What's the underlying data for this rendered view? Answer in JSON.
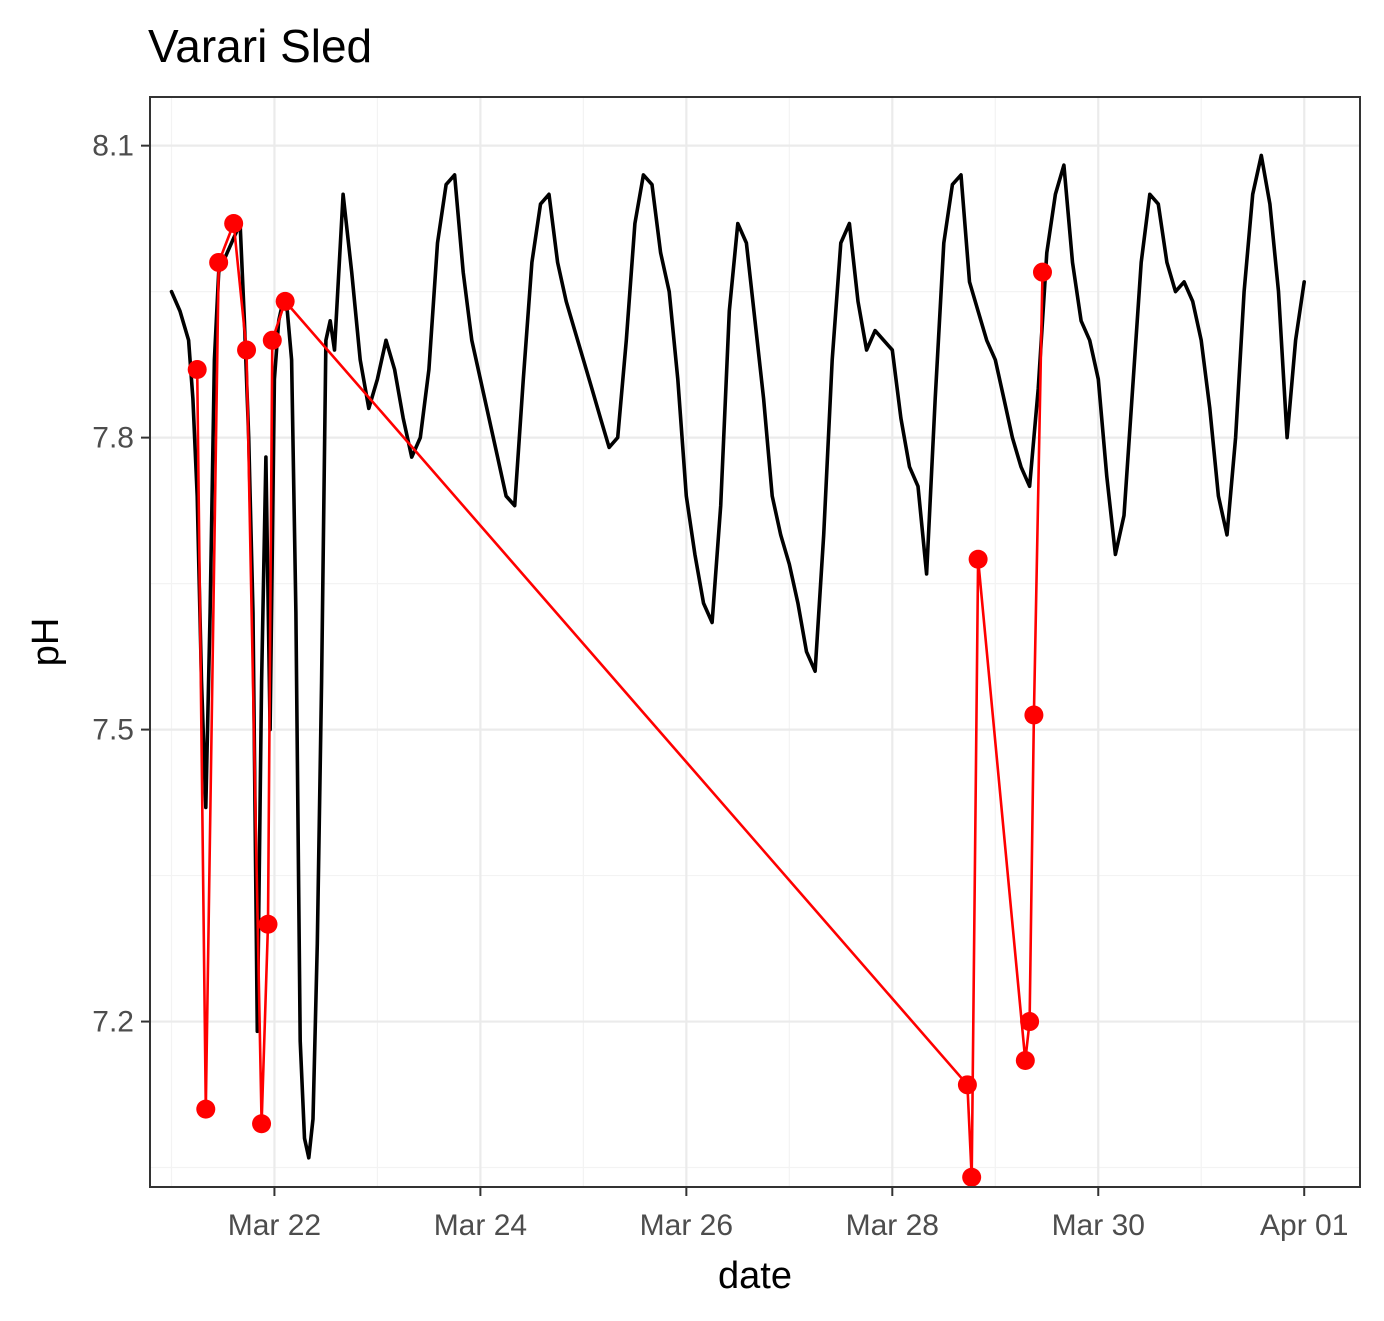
{
  "chart_data": {
    "type": "line",
    "title": "Varari Sled",
    "xlabel": "date",
    "ylabel": "pH",
    "x_type": "date",
    "xlim": [
      "2024-03-20T19:00",
      "2024-04-01T13:00"
    ],
    "ylim": [
      7.03,
      8.15
    ],
    "x_ticks": [
      {
        "date": "2024-03-22",
        "label": "Mar 22"
      },
      {
        "date": "2024-03-24",
        "label": "Mar 24"
      },
      {
        "date": "2024-03-26",
        "label": "Mar 26"
      },
      {
        "date": "2024-03-28",
        "label": "Mar 28"
      },
      {
        "date": "2024-03-30",
        "label": "Mar 30"
      },
      {
        "date": "2024-04-01",
        "label": "Apr 01"
      }
    ],
    "y_ticks": [
      {
        "value": 7.2,
        "label": "7.2"
      },
      {
        "value": 7.5,
        "label": "7.5"
      },
      {
        "value": 7.8,
        "label": "7.8"
      },
      {
        "value": 8.1,
        "label": "8.1"
      }
    ],
    "grid": true,
    "series": [
      {
        "color": "#000000",
        "style": "line",
        "points": [
          [
            "2024-03-21T00:00",
            7.95
          ],
          [
            "2024-03-21T02:00",
            7.93
          ],
          [
            "2024-03-21T04:00",
            7.9
          ],
          [
            "2024-03-21T05:00",
            7.84
          ],
          [
            "2024-03-21T06:00",
            7.74
          ],
          [
            "2024-03-21T07:00",
            7.55
          ],
          [
            "2024-03-21T08:00",
            7.42
          ],
          [
            "2024-03-21T09:00",
            7.62
          ],
          [
            "2024-03-21T10:00",
            7.88
          ],
          [
            "2024-03-21T11:00",
            7.97
          ],
          [
            "2024-03-21T13:00",
            7.99
          ],
          [
            "2024-03-21T15:00",
            8.01
          ],
          [
            "2024-03-21T16:00",
            8.02
          ],
          [
            "2024-03-21T17:00",
            7.92
          ],
          [
            "2024-03-21T18:00",
            7.8
          ],
          [
            "2024-03-21T19:00",
            7.62
          ],
          [
            "2024-03-21T20:00",
            7.19
          ],
          [
            "2024-03-21T21:00",
            7.55
          ],
          [
            "2024-03-21T22:00",
            7.78
          ],
          [
            "2024-03-21T23:00",
            7.5
          ],
          [
            "2024-03-22T00:00",
            7.86
          ],
          [
            "2024-03-22T01:00",
            7.92
          ],
          [
            "2024-03-22T02:00",
            7.94
          ],
          [
            "2024-03-22T03:00",
            7.93
          ],
          [
            "2024-03-22T04:00",
            7.88
          ],
          [
            "2024-03-22T05:00",
            7.62
          ],
          [
            "2024-03-22T06:00",
            7.18
          ],
          [
            "2024-03-22T07:00",
            7.08
          ],
          [
            "2024-03-22T08:00",
            7.06
          ],
          [
            "2024-03-22T09:00",
            7.1
          ],
          [
            "2024-03-22T10:00",
            7.28
          ],
          [
            "2024-03-22T11:00",
            7.55
          ],
          [
            "2024-03-22T12:00",
            7.9
          ],
          [
            "2024-03-22T13:00",
            7.92
          ],
          [
            "2024-03-22T14:00",
            7.89
          ],
          [
            "2024-03-22T16:00",
            8.05
          ],
          [
            "2024-03-22T18:00",
            7.97
          ],
          [
            "2024-03-22T20:00",
            7.88
          ],
          [
            "2024-03-22T22:00",
            7.83
          ],
          [
            "2024-03-23T00:00",
            7.86
          ],
          [
            "2024-03-23T02:00",
            7.9
          ],
          [
            "2024-03-23T04:00",
            7.87
          ],
          [
            "2024-03-23T06:00",
            7.82
          ],
          [
            "2024-03-23T08:00",
            7.78
          ],
          [
            "2024-03-23T10:00",
            7.8
          ],
          [
            "2024-03-23T12:00",
            7.87
          ],
          [
            "2024-03-23T14:00",
            8.0
          ],
          [
            "2024-03-23T16:00",
            8.06
          ],
          [
            "2024-03-23T18:00",
            8.07
          ],
          [
            "2024-03-23T20:00",
            7.97
          ],
          [
            "2024-03-23T22:00",
            7.9
          ],
          [
            "2024-03-24T00:00",
            7.86
          ],
          [
            "2024-03-24T02:00",
            7.82
          ],
          [
            "2024-03-24T04:00",
            7.78
          ],
          [
            "2024-03-24T06:00",
            7.74
          ],
          [
            "2024-03-24T08:00",
            7.73
          ],
          [
            "2024-03-24T10:00",
            7.86
          ],
          [
            "2024-03-24T12:00",
            7.98
          ],
          [
            "2024-03-24T14:00",
            8.04
          ],
          [
            "2024-03-24T16:00",
            8.05
          ],
          [
            "2024-03-24T18:00",
            7.98
          ],
          [
            "2024-03-24T20:00",
            7.94
          ],
          [
            "2024-03-24T22:00",
            7.91
          ],
          [
            "2024-03-25T00:00",
            7.88
          ],
          [
            "2024-03-25T02:00",
            7.85
          ],
          [
            "2024-03-25T04:00",
            7.82
          ],
          [
            "2024-03-25T06:00",
            7.79
          ],
          [
            "2024-03-25T08:00",
            7.8
          ],
          [
            "2024-03-25T10:00",
            7.9
          ],
          [
            "2024-03-25T12:00",
            8.02
          ],
          [
            "2024-03-25T14:00",
            8.07
          ],
          [
            "2024-03-25T16:00",
            8.06
          ],
          [
            "2024-03-25T18:00",
            7.99
          ],
          [
            "2024-03-25T20:00",
            7.95
          ],
          [
            "2024-03-25T22:00",
            7.86
          ],
          [
            "2024-03-26T00:00",
            7.74
          ],
          [
            "2024-03-26T02:00",
            7.68
          ],
          [
            "2024-03-26T04:00",
            7.63
          ],
          [
            "2024-03-26T06:00",
            7.61
          ],
          [
            "2024-03-26T08:00",
            7.73
          ],
          [
            "2024-03-26T10:00",
            7.93
          ],
          [
            "2024-03-26T12:00",
            8.02
          ],
          [
            "2024-03-26T14:00",
            8.0
          ],
          [
            "2024-03-26T16:00",
            7.92
          ],
          [
            "2024-03-26T18:00",
            7.84
          ],
          [
            "2024-03-26T20:00",
            7.74
          ],
          [
            "2024-03-26T22:00",
            7.7
          ],
          [
            "2024-03-27T00:00",
            7.67
          ],
          [
            "2024-03-27T02:00",
            7.63
          ],
          [
            "2024-03-27T04:00",
            7.58
          ],
          [
            "2024-03-27T06:00",
            7.56
          ],
          [
            "2024-03-27T08:00",
            7.7
          ],
          [
            "2024-03-27T10:00",
            7.88
          ],
          [
            "2024-03-27T12:00",
            8.0
          ],
          [
            "2024-03-27T14:00",
            8.02
          ],
          [
            "2024-03-27T16:00",
            7.94
          ],
          [
            "2024-03-27T18:00",
            7.89
          ],
          [
            "2024-03-27T20:00",
            7.91
          ],
          [
            "2024-03-27T22:00",
            7.9
          ],
          [
            "2024-03-28T00:00",
            7.89
          ],
          [
            "2024-03-28T02:00",
            7.82
          ],
          [
            "2024-03-28T04:00",
            7.77
          ],
          [
            "2024-03-28T06:00",
            7.75
          ],
          [
            "2024-03-28T08:00",
            7.66
          ],
          [
            "2024-03-28T10:00",
            7.84
          ],
          [
            "2024-03-28T12:00",
            8.0
          ],
          [
            "2024-03-28T14:00",
            8.06
          ],
          [
            "2024-03-28T16:00",
            8.07
          ],
          [
            "2024-03-28T18:00",
            7.96
          ],
          [
            "2024-03-28T20:00",
            7.93
          ],
          [
            "2024-03-28T22:00",
            7.9
          ],
          [
            "2024-03-29T00:00",
            7.88
          ],
          [
            "2024-03-29T02:00",
            7.84
          ],
          [
            "2024-03-29T04:00",
            7.8
          ],
          [
            "2024-03-29T06:00",
            7.77
          ],
          [
            "2024-03-29T08:00",
            7.75
          ],
          [
            "2024-03-29T10:00",
            7.85
          ],
          [
            "2024-03-29T12:00",
            7.99
          ],
          [
            "2024-03-29T14:00",
            8.05
          ],
          [
            "2024-03-29T16:00",
            8.08
          ],
          [
            "2024-03-29T18:00",
            7.98
          ],
          [
            "2024-03-29T20:00",
            7.92
          ],
          [
            "2024-03-29T22:00",
            7.9
          ],
          [
            "2024-03-30T00:00",
            7.86
          ],
          [
            "2024-03-30T02:00",
            7.76
          ],
          [
            "2024-03-30T04:00",
            7.68
          ],
          [
            "2024-03-30T06:00",
            7.72
          ],
          [
            "2024-03-30T08:00",
            7.85
          ],
          [
            "2024-03-30T10:00",
            7.98
          ],
          [
            "2024-03-30T12:00",
            8.05
          ],
          [
            "2024-03-30T14:00",
            8.04
          ],
          [
            "2024-03-30T16:00",
            7.98
          ],
          [
            "2024-03-30T18:00",
            7.95
          ],
          [
            "2024-03-30T20:00",
            7.96
          ],
          [
            "2024-03-30T22:00",
            7.94
          ],
          [
            "2024-03-31T00:00",
            7.9
          ],
          [
            "2024-03-31T02:00",
            7.83
          ],
          [
            "2024-03-31T04:00",
            7.74
          ],
          [
            "2024-03-31T06:00",
            7.7
          ],
          [
            "2024-03-31T08:00",
            7.8
          ],
          [
            "2024-03-31T10:00",
            7.95
          ],
          [
            "2024-03-31T12:00",
            8.05
          ],
          [
            "2024-03-31T14:00",
            8.09
          ],
          [
            "2024-03-31T16:00",
            8.04
          ],
          [
            "2024-03-31T18:00",
            7.95
          ],
          [
            "2024-03-31T20:00",
            7.8
          ],
          [
            "2024-03-31T22:00",
            7.9
          ],
          [
            "2024-04-01T00:00",
            7.96
          ]
        ]
      },
      {
        "color": "#ff0000",
        "style": "line+points",
        "points": [
          [
            "2024-03-21T06:00",
            7.87
          ],
          [
            "2024-03-21T08:00",
            7.11
          ],
          [
            "2024-03-21T11:00",
            7.98
          ],
          [
            "2024-03-21T14:30",
            8.02
          ],
          [
            "2024-03-21T17:30",
            7.89
          ],
          [
            "2024-03-21T21:00",
            7.095
          ],
          [
            "2024-03-21T22:30",
            7.3
          ],
          [
            "2024-03-21T23:30",
            7.9
          ],
          [
            "2024-03-22T02:30",
            7.94
          ],
          [
            "2024-03-28T17:30",
            7.135
          ],
          [
            "2024-03-28T18:30",
            7.04
          ],
          [
            "2024-03-28T20:00",
            7.675
          ],
          [
            "2024-03-29T07:00",
            7.16
          ],
          [
            "2024-03-29T08:00",
            7.2
          ],
          [
            "2024-03-29T09:00",
            7.515
          ],
          [
            "2024-03-29T11:00",
            7.97
          ]
        ]
      }
    ]
  }
}
